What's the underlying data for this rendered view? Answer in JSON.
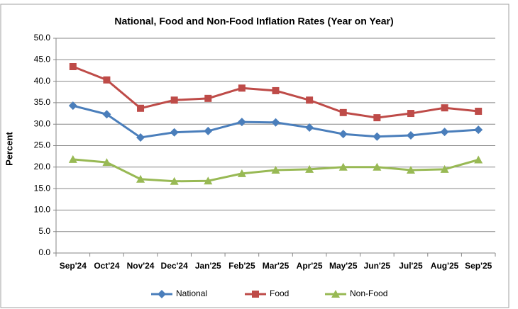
{
  "chart_data": {
    "type": "line",
    "title": "National, Food and Non-Food Inflation Rates (Year on Year)",
    "ylabel": "Percent",
    "categories": [
      "Sep'24",
      "Oct'24",
      "Nov'24",
      "Dec'24",
      "Jan'25",
      "Feb'25",
      "Mar'25",
      "Apr'25",
      "May'25",
      "Jun'25",
      "Jul'25",
      "Aug'25",
      "Sep'25"
    ],
    "series": [
      {
        "name": "National",
        "color": "#4a7ebb",
        "marker": "diamond",
        "values": [
          34.3,
          32.3,
          26.9,
          28.1,
          28.4,
          30.5,
          30.4,
          29.2,
          27.7,
          27.1,
          27.4,
          28.2,
          28.7
        ]
      },
      {
        "name": "Food",
        "color": "#be4b48",
        "marker": "square",
        "values": [
          43.4,
          40.3,
          33.7,
          35.6,
          36.0,
          38.4,
          37.8,
          35.6,
          32.7,
          31.5,
          32.5,
          33.8,
          33.0
        ]
      },
      {
        "name": "Non-Food",
        "color": "#98b954",
        "marker": "triangle",
        "values": [
          21.8,
          21.1,
          17.2,
          16.7,
          16.8,
          18.5,
          19.3,
          19.5,
          20.0,
          20.0,
          19.3,
          19.5,
          21.7
        ]
      }
    ],
    "ylim": [
      0,
      50
    ],
    "yticks": [
      {
        "value": 0,
        "label": "0.0"
      },
      {
        "value": 5,
        "label": "5.0"
      },
      {
        "value": 10,
        "label": "10.0"
      },
      {
        "value": 15,
        "label": "15.0"
      },
      {
        "value": 20,
        "label": "20.0"
      },
      {
        "value": 25,
        "label": "25.0"
      },
      {
        "value": 30,
        "label": "30.0"
      },
      {
        "value": 35,
        "label": "35.0"
      },
      {
        "value": 40,
        "label": "40.0"
      },
      {
        "value": 45,
        "label": "45.0"
      },
      {
        "value": 50,
        "label": "50.0"
      }
    ],
    "grid": true,
    "legend": "bottom"
  }
}
